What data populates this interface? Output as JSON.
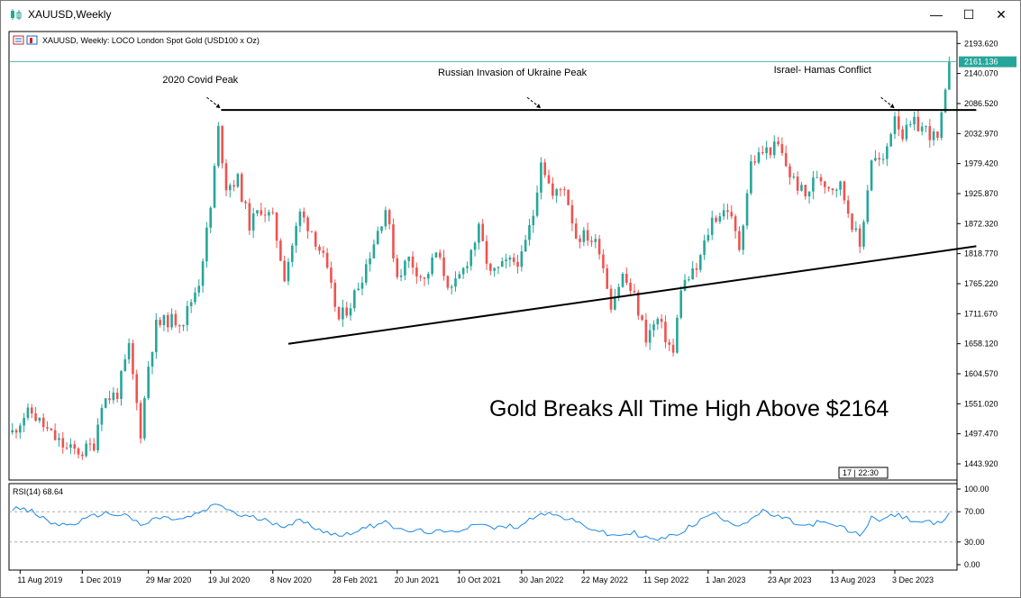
{
  "window": {
    "title": "XAUUSD,Weekly",
    "minimize_glyph": "—",
    "maximize_glyph": "☐",
    "close_glyph": "✕"
  },
  "chart_header": {
    "text": "XAUUSD, Weekly:  LOCO London Spot Gold (USD100 x Oz)"
  },
  "colors": {
    "bull": "#26a69a",
    "bear": "#ef5350",
    "rsi_line": "#1e88e5",
    "price_line": "#26a69a",
    "trendline": "#000000"
  },
  "headline": "Gold Breaks All Time High Above $2164",
  "annotations": [
    {
      "text": "2020 Covid Peak",
      "date": "2020-08-07"
    },
    {
      "text": "Russian Invasion of Ukraine Peak",
      "date": "2022-03-07"
    },
    {
      "text": "Israel- Hamas Conflict",
      "date": "2023-12-04"
    }
  ],
  "current_price_label": "2161.136",
  "timer_label": "17 | 22:30",
  "rsi": {
    "label": "RSI(14) 68.64",
    "value": 68.64,
    "levels": [
      70,
      30
    ],
    "y_ticks": [
      "100.00",
      "70.00",
      "30.00",
      "0.00"
    ]
  },
  "chart_data": {
    "type": "line",
    "symbol": "XAUUSD",
    "timeframe": "Weekly",
    "y_ticks": [
      "2193.620",
      "2140.070",
      "2086.520",
      "2032.970",
      "1979.420",
      "1925.870",
      "1872.320",
      "1818.770",
      "1765.220",
      "1711.670",
      "1658.120",
      "1604.570",
      "1551.020",
      "1497.470",
      "1443.920"
    ],
    "ylim": [
      1415,
      2215
    ],
    "x_ticks": [
      "11 Aug 2019",
      "1 Dec 2019",
      "29 Mar 2020",
      "19 Jul 2020",
      "8 Nov 2020",
      "28 Feb 2021",
      "20 Jun 2021",
      "10 Oct 2021",
      "30 Jan 2022",
      "22 May 2022",
      "11 Sep 2022",
      "1 Jan 2023",
      "23 Apr 2023",
      "13 Aug 2023",
      "3 Dec 2023"
    ],
    "x_tick_dates": [
      "2019-08-11",
      "2019-12-01",
      "2020-03-29",
      "2020-07-19",
      "2020-11-08",
      "2021-02-28",
      "2021-06-20",
      "2021-10-10",
      "2022-01-30",
      "2022-05-22",
      "2022-09-11",
      "2023-01-01",
      "2023-04-23",
      "2023-08-13",
      "2023-12-03"
    ],
    "xlim": [
      "2019-07-22",
      "2024-03-24"
    ],
    "series": [
      {
        "values": [
          [
            "2019-07-28",
            1500
          ],
          [
            "2019-08-18",
            1530
          ],
          [
            "2019-09-01",
            1535
          ],
          [
            "2019-10-06",
            1495
          ],
          [
            "2019-11-03",
            1470
          ],
          [
            "2019-12-01",
            1465
          ],
          [
            "2019-12-22",
            1480
          ],
          [
            "2020-01-05",
            1555
          ],
          [
            "2020-02-02",
            1570
          ],
          [
            "2020-02-23",
            1650
          ],
          [
            "2020-03-15",
            1500
          ],
          [
            "2020-03-29",
            1620
          ],
          [
            "2020-04-12",
            1690
          ],
          [
            "2020-05-03",
            1700
          ],
          [
            "2020-05-31",
            1700
          ],
          [
            "2020-06-28",
            1770
          ],
          [
            "2020-07-19",
            1900
          ],
          [
            "2020-08-02",
            2040
          ],
          [
            "2020-08-16",
            1940
          ],
          [
            "2020-09-06",
            1950
          ],
          [
            "2020-09-27",
            1870
          ],
          [
            "2020-10-18",
            1900
          ],
          [
            "2020-11-08",
            1880
          ],
          [
            "2020-11-29",
            1780
          ],
          [
            "2020-12-27",
            1890
          ],
          [
            "2021-01-17",
            1860
          ],
          [
            "2021-02-07",
            1810
          ],
          [
            "2021-03-07",
            1700
          ],
          [
            "2021-03-28",
            1730
          ],
          [
            "2021-04-18",
            1780
          ],
          [
            "2021-05-09",
            1840
          ],
          [
            "2021-05-30",
            1900
          ],
          [
            "2021-06-20",
            1780
          ],
          [
            "2021-07-11",
            1810
          ],
          [
            "2021-08-08",
            1770
          ],
          [
            "2021-08-29",
            1820
          ],
          [
            "2021-09-26",
            1750
          ],
          [
            "2021-10-17",
            1790
          ],
          [
            "2021-11-14",
            1860
          ],
          [
            "2021-12-05",
            1780
          ],
          [
            "2022-01-02",
            1800
          ],
          [
            "2022-01-30",
            1810
          ],
          [
            "2022-02-20",
            1890
          ],
          [
            "2022-03-06",
            1990
          ],
          [
            "2022-03-27",
            1920
          ],
          [
            "2022-04-17",
            1940
          ],
          [
            "2022-05-08",
            1850
          ],
          [
            "2022-05-29",
            1850
          ],
          [
            "2022-06-19",
            1830
          ],
          [
            "2022-07-10",
            1730
          ],
          [
            "2022-07-31",
            1780
          ],
          [
            "2022-08-21",
            1740
          ],
          [
            "2022-09-11",
            1670
          ],
          [
            "2022-10-02",
            1700
          ],
          [
            "2022-10-30",
            1640
          ],
          [
            "2022-11-13",
            1760
          ],
          [
            "2022-12-11",
            1790
          ],
          [
            "2023-01-08",
            1880
          ],
          [
            "2023-02-05",
            1900
          ],
          [
            "2023-02-26",
            1830
          ],
          [
            "2023-03-19",
            1980
          ],
          [
            "2023-04-09",
            2000
          ],
          [
            "2023-05-07",
            2010
          ],
          [
            "2023-05-28",
            1960
          ],
          [
            "2023-06-25",
            1920
          ],
          [
            "2023-07-16",
            1960
          ],
          [
            "2023-08-06",
            1940
          ],
          [
            "2023-08-27",
            1940
          ],
          [
            "2023-10-01",
            1830
          ],
          [
            "2023-10-22",
            1990
          ],
          [
            "2023-11-12",
            1980
          ],
          [
            "2023-12-03",
            2070
          ],
          [
            "2023-12-17",
            2030
          ],
          [
            "2024-01-07",
            2050
          ],
          [
            "2024-01-28",
            2040
          ],
          [
            "2024-02-18",
            2020
          ],
          [
            "2024-03-03",
            2100
          ],
          [
            "2024-03-10",
            2161
          ]
        ]
      }
    ],
    "rsi_values": [
      [
        "2019-07-28",
        75
      ],
      [
        "2019-09-01",
        70
      ],
      [
        "2019-10-06",
        55
      ],
      [
        "2019-11-03",
        52
      ],
      [
        "2019-12-01",
        58
      ],
      [
        "2020-01-05",
        68
      ],
      [
        "2020-02-23",
        65
      ],
      [
        "2020-03-15",
        50
      ],
      [
        "2020-04-12",
        62
      ],
      [
        "2020-05-31",
        60
      ],
      [
        "2020-06-28",
        68
      ],
      [
        "2020-08-02",
        80
      ],
      [
        "2020-09-06",
        66
      ],
      [
        "2020-10-18",
        60
      ],
      [
        "2020-11-29",
        52
      ],
      [
        "2020-12-27",
        58
      ],
      [
        "2021-02-07",
        45
      ],
      [
        "2021-03-07",
        38
      ],
      [
        "2021-05-09",
        52
      ],
      [
        "2021-05-30",
        60
      ],
      [
        "2021-06-20",
        45
      ],
      [
        "2021-08-08",
        44
      ],
      [
        "2021-09-26",
        42
      ],
      [
        "2021-11-14",
        56
      ],
      [
        "2021-12-05",
        48
      ],
      [
        "2022-01-30",
        52
      ],
      [
        "2022-03-06",
        70
      ],
      [
        "2022-04-17",
        62
      ],
      [
        "2022-05-29",
        50
      ],
      [
        "2022-07-10",
        38
      ],
      [
        "2022-08-21",
        42
      ],
      [
        "2022-09-25",
        32
      ],
      [
        "2022-10-30",
        38
      ],
      [
        "2022-12-11",
        55
      ],
      [
        "2023-01-08",
        68
      ],
      [
        "2023-02-26",
        52
      ],
      [
        "2023-04-09",
        70
      ],
      [
        "2023-05-28",
        58
      ],
      [
        "2023-06-25",
        50
      ],
      [
        "2023-07-16",
        56
      ],
      [
        "2023-08-27",
        50
      ],
      [
        "2023-10-01",
        38
      ],
      [
        "2023-10-22",
        62
      ],
      [
        "2023-11-12",
        60
      ],
      [
        "2023-12-03",
        66
      ],
      [
        "2024-01-07",
        58
      ],
      [
        "2024-02-18",
        54
      ],
      [
        "2024-03-10",
        68.64
      ]
    ],
    "resistance_line": {
      "from": [
        "2020-08-07",
        2075
      ],
      "to": [
        "2024-03-10",
        2075
      ]
    },
    "support_line": {
      "from": [
        "2020-12-06",
        1658
      ],
      "to": [
        "2024-03-10",
        1832
      ]
    }
  }
}
